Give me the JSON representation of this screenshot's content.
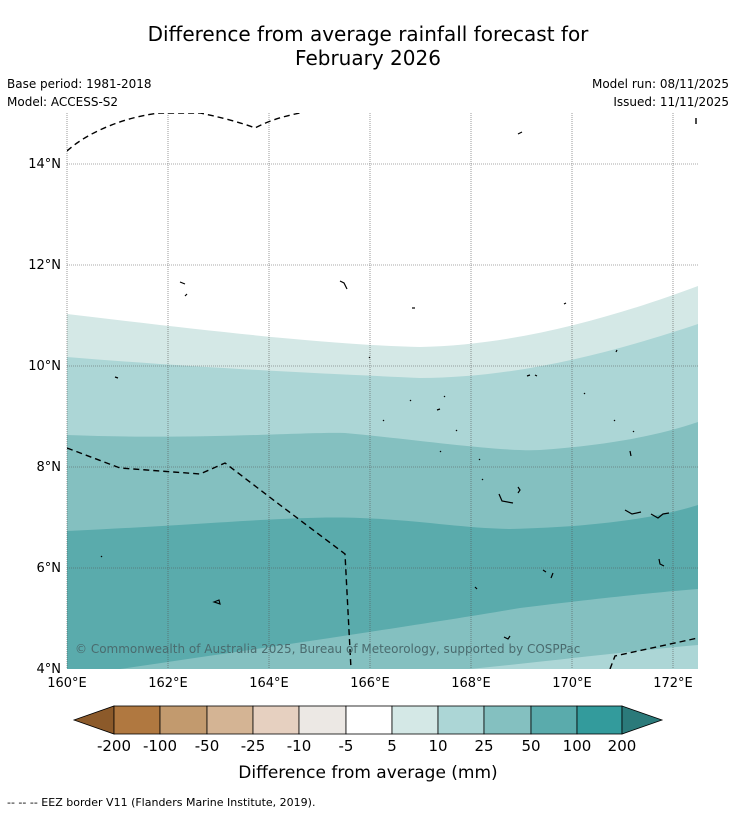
{
  "title": {
    "line1": "Difference from average rainfall forecast for",
    "line2": "February 2026"
  },
  "meta": {
    "base_period": "Base period: 1981-2018",
    "model": "Model: ACCESS-S2",
    "model_run": "Model run: 08/11/2025",
    "issued": "Issued: 11/11/2025"
  },
  "map": {
    "lon_range": [
      160,
      172.5
    ],
    "lat_range": [
      4,
      15
    ],
    "lon_ticks": [
      "160°E",
      "162°E",
      "164°E",
      "166°E",
      "168°E",
      "170°E",
      "172°E"
    ],
    "lat_ticks": [
      "4°N",
      "6°N",
      "8°N",
      "10°N",
      "12°N",
      "14°N"
    ],
    "copyright": "© Commonwealth of Australia 2025, Bureau of Meteorology, supported by COSPPac"
  },
  "legend": {
    "title": "Difference from average (mm)",
    "labels": [
      "-200",
      "-100",
      "-50",
      "-25",
      "-10",
      "-5",
      "5",
      "10",
      "25",
      "50",
      "100",
      "200"
    ],
    "colors": [
      "#8c5a2a",
      "#b07840",
      "#c29a6e",
      "#d4b494",
      "#e6d0c0",
      "#ece8e4",
      "#ffffff",
      "#d4e8e6",
      "#acd6d6",
      "#84c0c0",
      "#5aabac",
      "#339b9c",
      "#2b7a7a"
    ]
  },
  "footer": "-- -- -- EEZ border V11 (Flanders Marine Institute, 2019)."
}
